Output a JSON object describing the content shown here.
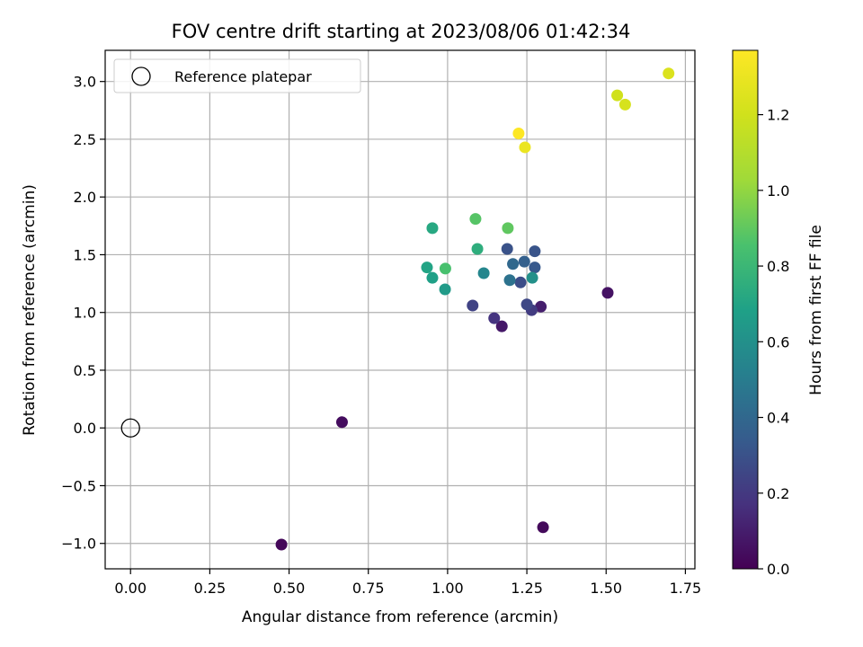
{
  "chart_data": {
    "type": "scatter",
    "title": "FOV centre drift starting at 2023/08/06 01:42:34",
    "xlabel": "Angular distance from reference (arcmin)",
    "ylabel": "Rotation from reference (arcmin)",
    "xlim": [
      -0.08,
      1.78
    ],
    "ylim": [
      -1.22,
      3.27
    ],
    "x_ticks": [
      0.0,
      0.25,
      0.5,
      0.75,
      1.0,
      1.25,
      1.5,
      1.75
    ],
    "x_tick_labels": [
      "0.00",
      "0.25",
      "0.50",
      "0.75",
      "1.00",
      "1.25",
      "1.50",
      "1.75"
    ],
    "y_ticks": [
      -1.0,
      -0.5,
      0.0,
      0.5,
      1.0,
      1.5,
      2.0,
      2.5,
      3.0
    ],
    "y_tick_labels": [
      "−1.0",
      "−0.5",
      "0.0",
      "0.5",
      "1.0",
      "1.5",
      "2.0",
      "2.5",
      "3.0"
    ],
    "grid": true,
    "legend_position": "top-left",
    "colormap": "viridis",
    "colorbar": {
      "label": "Hours from first FF file",
      "range": [
        0.0,
        1.37
      ],
      "ticks": [
        0.0,
        0.2,
        0.4,
        0.6,
        0.8,
        1.0,
        1.2
      ],
      "tick_labels": [
        "0.0",
        "0.2",
        "0.4",
        "0.6",
        "0.8",
        "1.0",
        "1.2"
      ]
    },
    "reference": {
      "label": "Reference platepar",
      "x": 0.0,
      "y": 0.0
    },
    "points": [
      {
        "x": 0.476,
        "y": -1.01,
        "c": 0.02
      },
      {
        "x": 1.301,
        "y": -0.86,
        "c": 0.03
      },
      {
        "x": 0.667,
        "y": 0.05,
        "c": 0.04
      },
      {
        "x": 1.505,
        "y": 1.17,
        "c": 0.06
      },
      {
        "x": 1.171,
        "y": 0.88,
        "c": 0.08
      },
      {
        "x": 1.294,
        "y": 1.05,
        "c": 0.1
      },
      {
        "x": 1.147,
        "y": 0.95,
        "c": 0.18
      },
      {
        "x": 1.265,
        "y": 1.02,
        "c": 0.21
      },
      {
        "x": 1.079,
        "y": 1.06,
        "c": 0.24
      },
      {
        "x": 1.25,
        "y": 1.07,
        "c": 0.26
      },
      {
        "x": 1.23,
        "y": 1.26,
        "c": 0.28
      },
      {
        "x": 1.188,
        "y": 1.55,
        "c": 0.3
      },
      {
        "x": 1.275,
        "y": 1.53,
        "c": 0.31
      },
      {
        "x": 1.275,
        "y": 1.39,
        "c": 0.33
      },
      {
        "x": 1.242,
        "y": 1.44,
        "c": 0.36
      },
      {
        "x": 1.206,
        "y": 1.42,
        "c": 0.4
      },
      {
        "x": 1.196,
        "y": 1.28,
        "c": 0.45
      },
      {
        "x": 1.114,
        "y": 1.34,
        "c": 0.55
      },
      {
        "x": 1.267,
        "y": 1.3,
        "c": 0.6
      },
      {
        "x": 0.992,
        "y": 1.2,
        "c": 0.65
      },
      {
        "x": 0.952,
        "y": 1.3,
        "c": 0.68
      },
      {
        "x": 0.935,
        "y": 1.39,
        "c": 0.7
      },
      {
        "x": 0.952,
        "y": 1.73,
        "c": 0.72
      },
      {
        "x": 1.094,
        "y": 1.55,
        "c": 0.75
      },
      {
        "x": 0.993,
        "y": 1.38,
        "c": 0.85
      },
      {
        "x": 1.088,
        "y": 1.81,
        "c": 0.88
      },
      {
        "x": 1.19,
        "y": 1.73,
        "c": 0.9
      },
      {
        "x": 1.535,
        "y": 2.88,
        "c": 1.2
      },
      {
        "x": 1.56,
        "y": 2.8,
        "c": 1.22
      },
      {
        "x": 1.697,
        "y": 3.07,
        "c": 1.24
      },
      {
        "x": 1.244,
        "y": 2.43,
        "c": 1.3
      },
      {
        "x": 1.224,
        "y": 2.55,
        "c": 1.37
      }
    ]
  }
}
